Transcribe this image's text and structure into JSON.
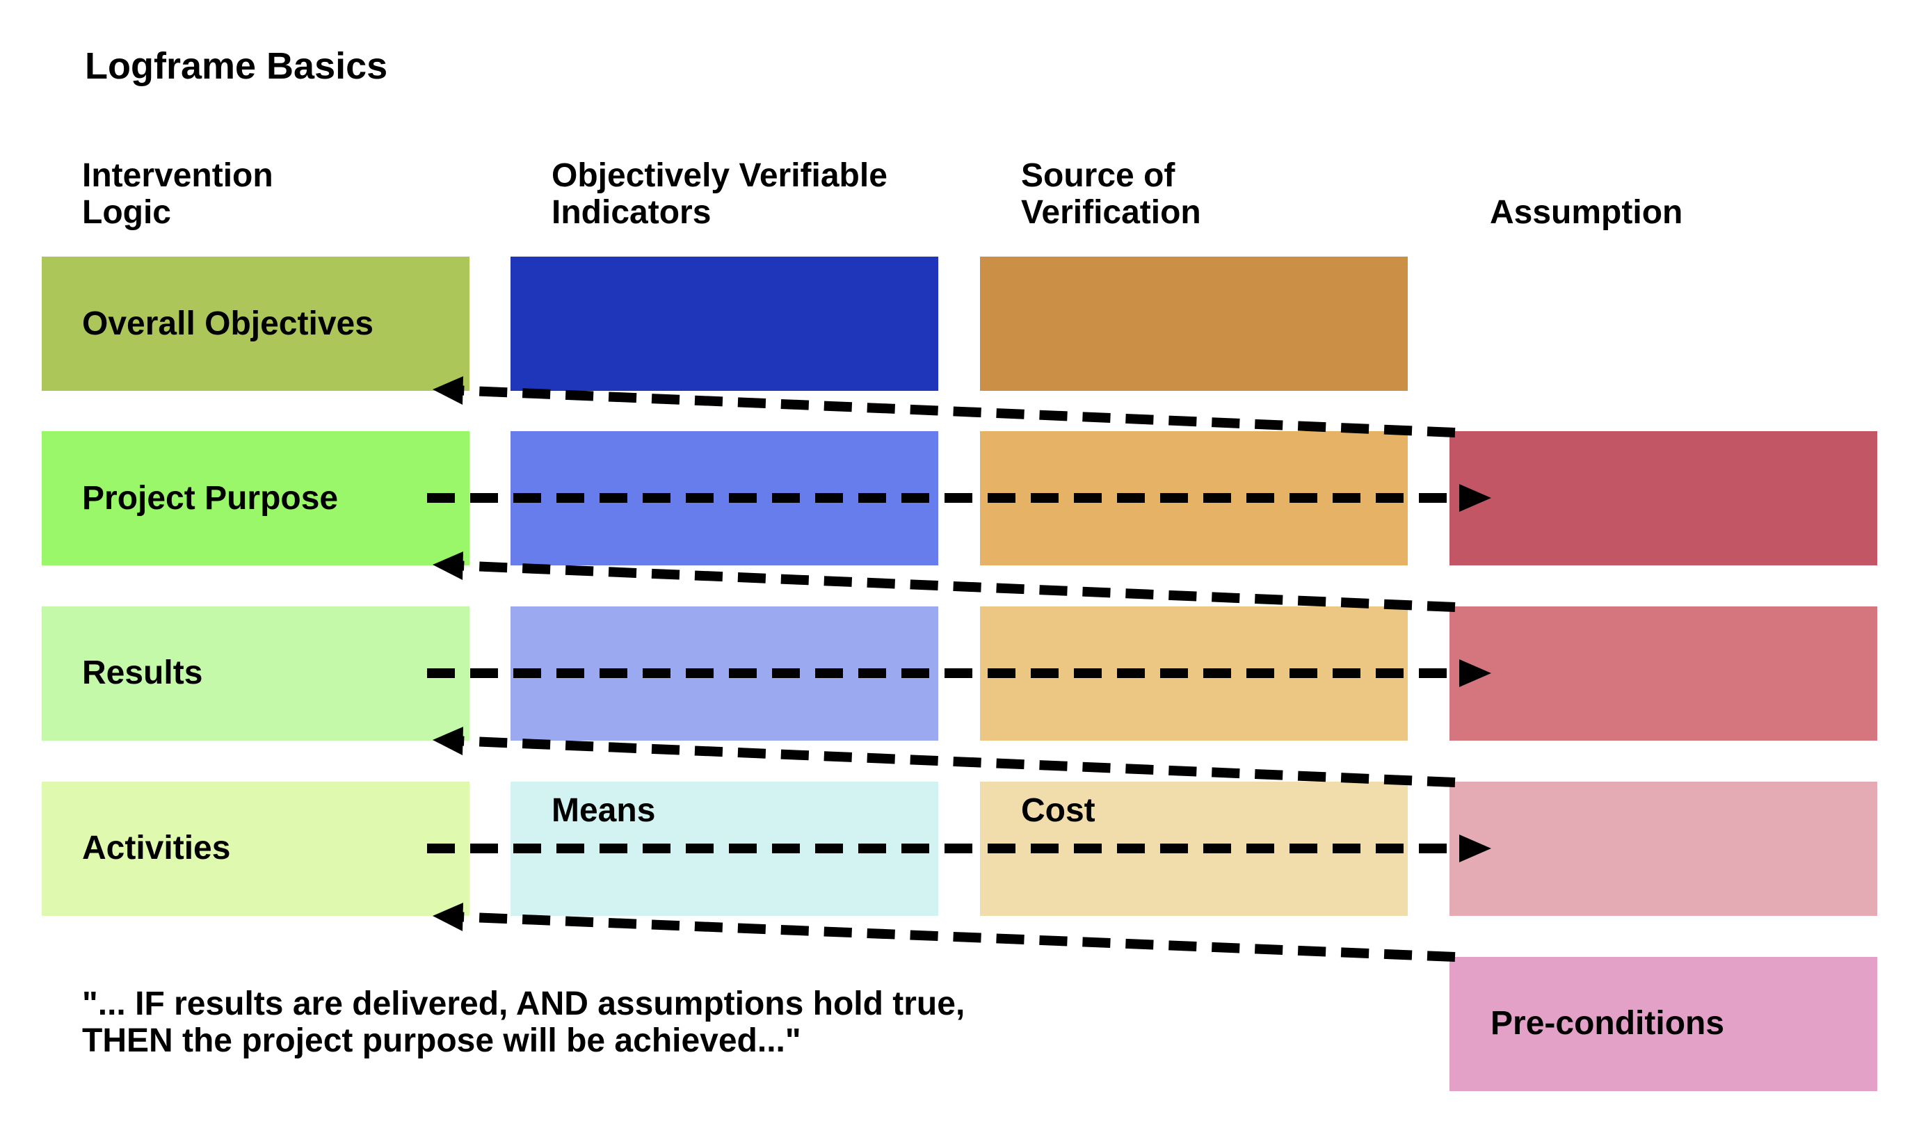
{
  "title": "Logframe Basics",
  "headers": {
    "intervention_logic": "Intervention\nLogic",
    "ovi": "Objectively Verifiable\nIndicators",
    "sov": "Source of\nVerification",
    "assumption": "Assumption"
  },
  "rows": {
    "overall_objectives": {
      "label": "Overall Objectives"
    },
    "project_purpose": {
      "label": "Project Purpose"
    },
    "results": {
      "label": "Results"
    },
    "activities": {
      "label": "Activities",
      "means": "Means",
      "cost": "Cost"
    }
  },
  "preconditions": {
    "label": "Pre-conditions"
  },
  "quote": "\"... IF results are delivered, AND assumptions hold true,\nTHEN the project purpose will be achieved...\"",
  "colors": {
    "logic": [
      "#adc65a",
      "#9bf76a",
      "#c4f9a9",
      "#dffaae"
    ],
    "ovi": [
      "#1f35ba",
      "#667deb",
      "#9baaf0",
      "#d2f3f1"
    ],
    "sov": [
      "#cb8f46",
      "#e6b265",
      "#ecc784",
      "#f1dcab"
    ],
    "assumption": [
      "#c25664",
      "#d5767f",
      "#e5abb5"
    ],
    "preconditions": "#e4a1c8",
    "arrows": "#000000"
  }
}
